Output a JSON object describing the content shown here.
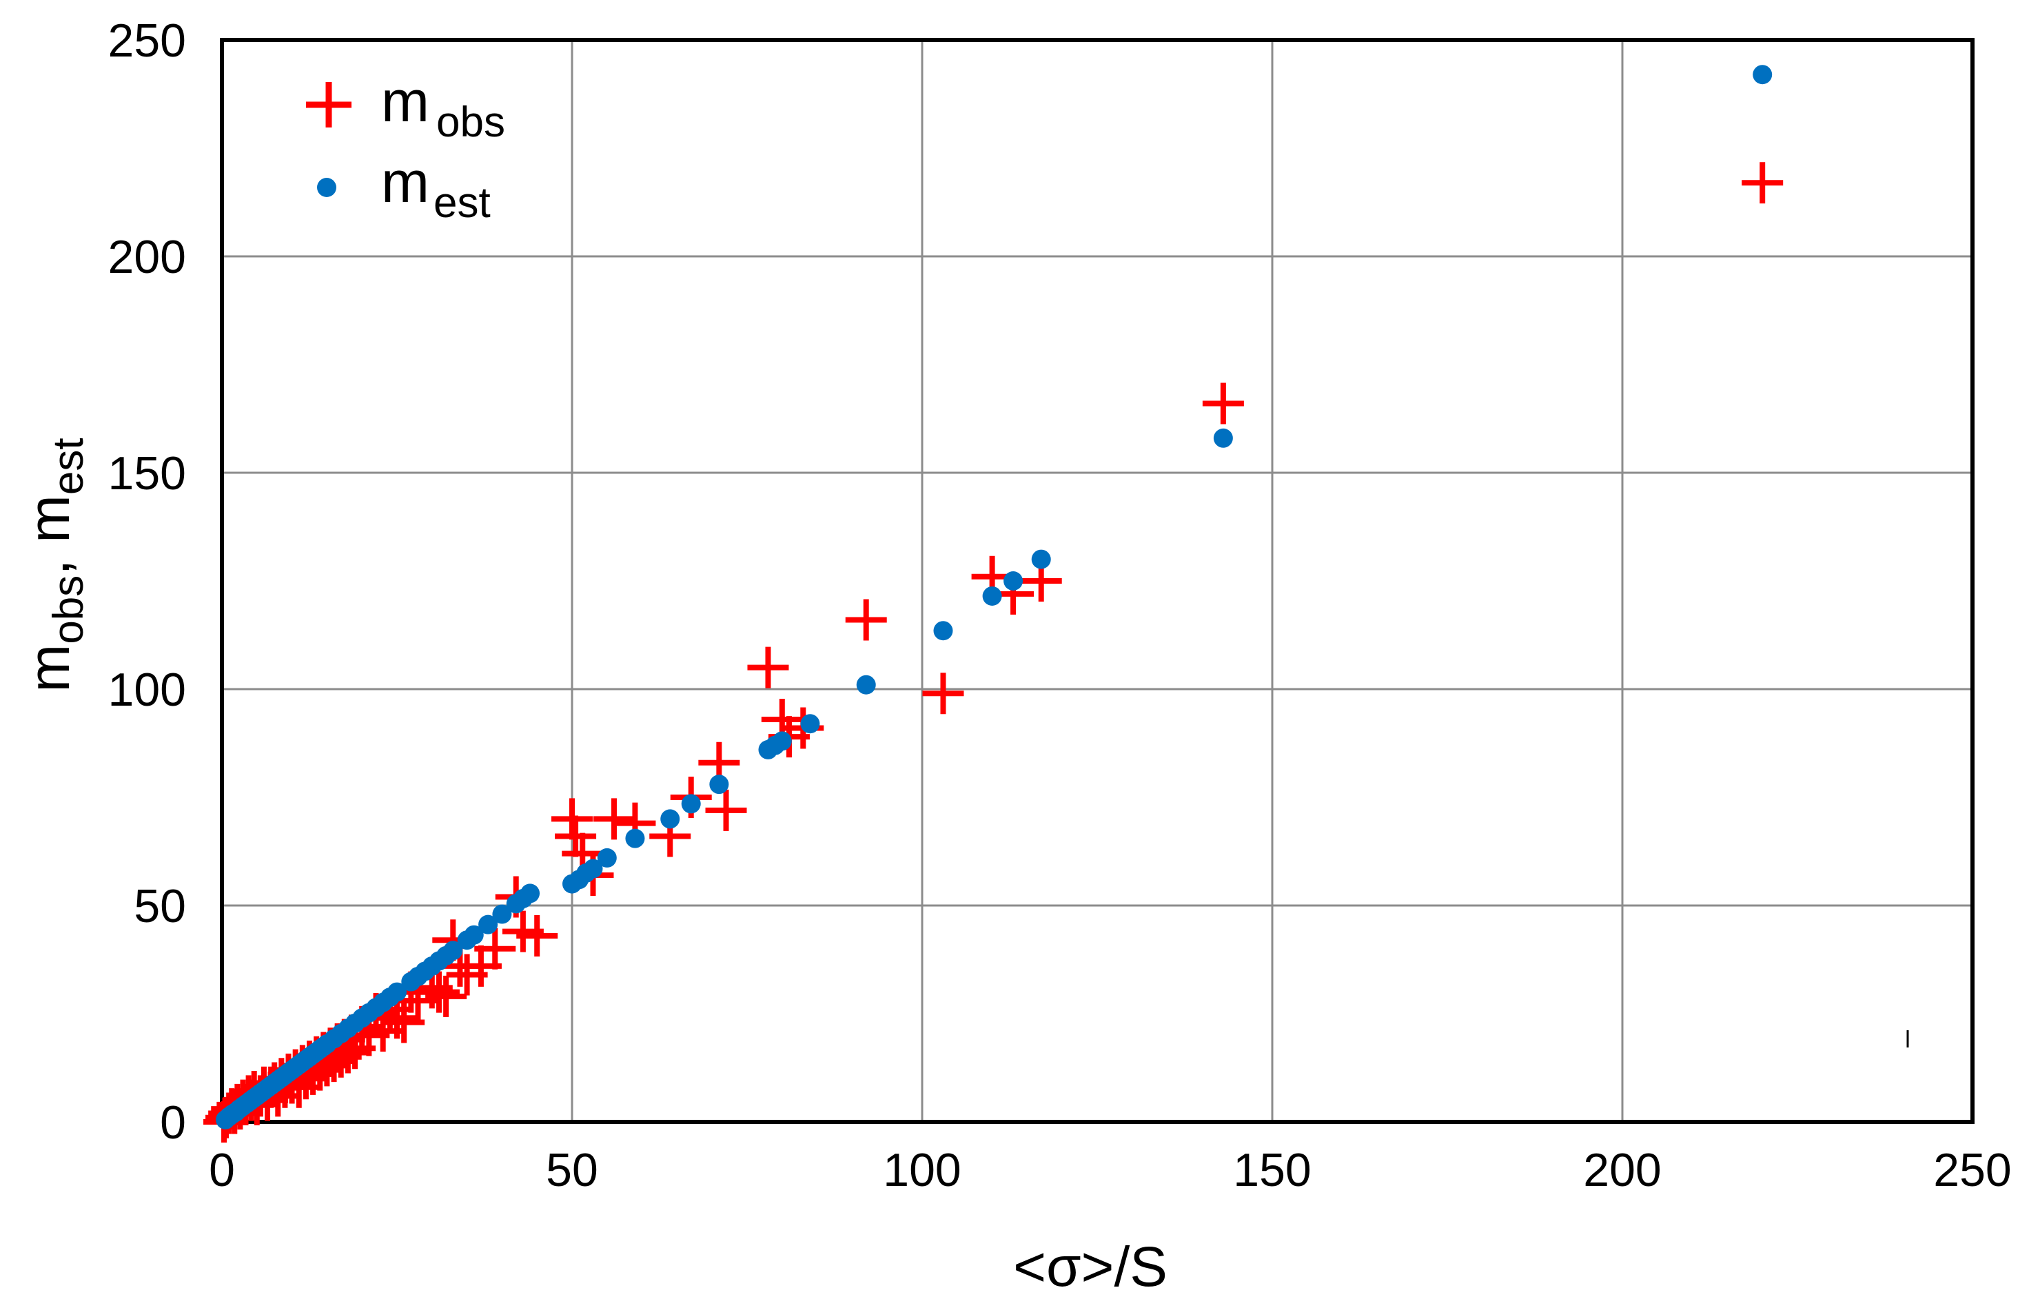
{
  "chart_data": {
    "type": "scatter",
    "title": "",
    "xlabel": "<σ>/S",
    "ylabel": "m",
    "ylabel_sub_1": "obs",
    "ylabel_sep": ",  m",
    "ylabel_sub_2": "est",
    "xlim": [
      0,
      250
    ],
    "ylim": [
      0,
      250
    ],
    "xticks": [
      "0",
      "50",
      "100",
      "150",
      "200",
      "250"
    ],
    "yticks": [
      "0",
      "50",
      "100",
      "150",
      "200",
      "250"
    ],
    "grid": true,
    "legend_position": "top-left",
    "series": [
      {
        "name": "m",
        "name_sub": "obs",
        "marker": "plus",
        "color": "#ff0000",
        "points": [
          [
            0.3,
            0
          ],
          [
            0.6,
            1
          ],
          [
            1,
            2
          ],
          [
            1.4,
            3
          ],
          [
            1.8,
            2
          ],
          [
            2.2,
            4
          ],
          [
            2.6,
            3
          ],
          [
            3,
            5
          ],
          [
            3.4,
            4
          ],
          [
            3.8,
            6
          ],
          [
            4.2,
            5
          ],
          [
            4.6,
            7
          ],
          [
            5,
            4
          ],
          [
            5.5,
            6
          ],
          [
            6,
            8
          ],
          [
            6.5,
            5
          ],
          [
            7,
            8
          ],
          [
            7.5,
            9
          ],
          [
            8,
            6
          ],
          [
            8.5,
            10
          ],
          [
            9,
            8
          ],
          [
            9.5,
            11
          ],
          [
            10,
            9
          ],
          [
            10.5,
            12
          ],
          [
            11,
            8
          ],
          [
            11.5,
            13
          ],
          [
            12,
            10
          ],
          [
            12.5,
            14
          ],
          [
            13,
            11
          ],
          [
            13.5,
            15
          ],
          [
            14,
            12
          ],
          [
            14.5,
            16
          ],
          [
            15,
            13
          ],
          [
            15.5,
            17
          ],
          [
            16,
            14
          ],
          [
            16.5,
            18
          ],
          [
            17,
            15
          ],
          [
            17.5,
            19
          ],
          [
            18,
            16
          ],
          [
            18.5,
            20
          ],
          [
            19,
            17
          ],
          [
            20,
            22
          ],
          [
            21,
            20
          ],
          [
            22,
            25
          ],
          [
            23,
            21
          ],
          [
            24,
            26
          ],
          [
            25,
            24
          ],
          [
            26,
            23
          ],
          [
            27,
            30
          ],
          [
            28,
            28
          ],
          [
            30,
            31
          ],
          [
            31,
            30
          ],
          [
            32,
            29
          ],
          [
            33,
            42
          ],
          [
            34,
            36
          ],
          [
            35,
            34
          ],
          [
            37,
            36
          ],
          [
            39,
            40
          ],
          [
            42,
            52
          ],
          [
            43,
            44
          ],
          [
            45,
            43
          ],
          [
            50,
            70
          ],
          [
            50.5,
            66
          ],
          [
            51.5,
            62
          ],
          [
            53,
            57
          ],
          [
            56,
            70
          ],
          [
            59,
            69
          ],
          [
            64,
            66
          ],
          [
            67,
            75
          ],
          [
            71,
            83
          ],
          [
            72,
            72
          ],
          [
            78,
            105
          ],
          [
            80,
            93
          ],
          [
            81,
            89
          ],
          [
            83,
            91
          ],
          [
            92,
            116
          ],
          [
            103,
            99
          ],
          [
            110,
            126
          ],
          [
            113,
            122
          ],
          [
            117,
            125
          ],
          [
            143,
            166
          ],
          [
            220,
            217
          ]
        ]
      },
      {
        "name": "m",
        "name_sub": "est",
        "marker": "circle",
        "color": "#0070c0",
        "points": [
          [
            0.5,
            0.5
          ],
          [
            1,
            1.2
          ],
          [
            1.5,
            1.8
          ],
          [
            2,
            2.3
          ],
          [
            2.5,
            3
          ],
          [
            3,
            3.6
          ],
          [
            3.5,
            4.2
          ],
          [
            4,
            4.8
          ],
          [
            4.5,
            5.4
          ],
          [
            5,
            6
          ],
          [
            5.5,
            6.6
          ],
          [
            6,
            7.2
          ],
          [
            6.5,
            7.8
          ],
          [
            7,
            8.4
          ],
          [
            7.5,
            9
          ],
          [
            8,
            9.6
          ],
          [
            8.5,
            10.2
          ],
          [
            9,
            10.8
          ],
          [
            9.5,
            11.4
          ],
          [
            10,
            12
          ],
          [
            10.5,
            12.6
          ],
          [
            11,
            13.2
          ],
          [
            11.5,
            13.8
          ],
          [
            12,
            14.4
          ],
          [
            12.5,
            15
          ],
          [
            13,
            15.6
          ],
          [
            13.5,
            16.2
          ],
          [
            14,
            16.8
          ],
          [
            14.5,
            17.4
          ],
          [
            15,
            18
          ],
          [
            16,
            19.2
          ],
          [
            17,
            20.4
          ],
          [
            18,
            21.6
          ],
          [
            19,
            22.8
          ],
          [
            20,
            24
          ],
          [
            21,
            25.2
          ],
          [
            22,
            26.4
          ],
          [
            23,
            27.6
          ],
          [
            24,
            28.8
          ],
          [
            25,
            30
          ],
          [
            27,
            32.4
          ],
          [
            28,
            33.6
          ],
          [
            29,
            34.8
          ],
          [
            30,
            36
          ],
          [
            31,
            37.2
          ],
          [
            32,
            38.4
          ],
          [
            33,
            39.6
          ],
          [
            35,
            42
          ],
          [
            36,
            43.2
          ],
          [
            38,
            45.6
          ],
          [
            40,
            48
          ],
          [
            42,
            50.4
          ],
          [
            43,
            51.6
          ],
          [
            44,
            52.8
          ],
          [
            50,
            55
          ],
          [
            51,
            56
          ],
          [
            52,
            57.5
          ],
          [
            53,
            58.5
          ],
          [
            55,
            61
          ],
          [
            59,
            65.5
          ],
          [
            64,
            70
          ],
          [
            67,
            73.5
          ],
          [
            71,
            78
          ],
          [
            78,
            86
          ],
          [
            79,
            87
          ],
          [
            80,
            88
          ],
          [
            84,
            92
          ],
          [
            92,
            101
          ],
          [
            103,
            113.5
          ],
          [
            110,
            121.5
          ],
          [
            113,
            125
          ],
          [
            117,
            130
          ],
          [
            143,
            158
          ],
          [
            220,
            242
          ]
        ]
      }
    ]
  }
}
